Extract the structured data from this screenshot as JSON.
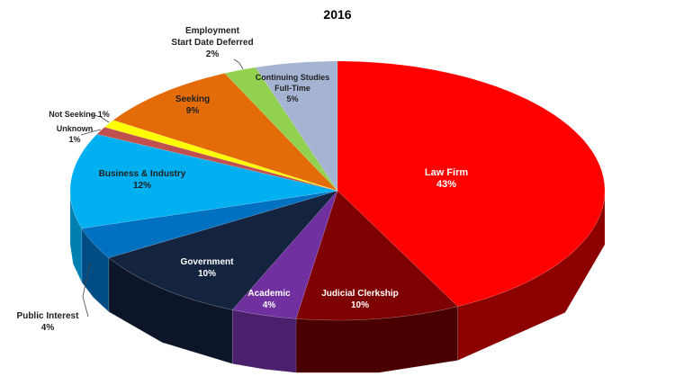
{
  "chart_data": {
    "type": "pie",
    "title": "2016",
    "slices": [
      {
        "name": "Law Firm",
        "value": 43,
        "label": "43%",
        "color": "#ff0000",
        "side": "#8c0000"
      },
      {
        "name": "Judicial Clerkship",
        "value": 10,
        "label": "10%",
        "color": "#7f0000",
        "side": "#4a0000"
      },
      {
        "name": "Academic",
        "value": 4,
        "label": "4%",
        "color": "#7030a0",
        "side": "#4a1f6b"
      },
      {
        "name": "Government",
        "value": 10,
        "label": "10%",
        "color": "#14243f",
        "side": "#0c1628"
      },
      {
        "name": "Public Interest",
        "value": 4,
        "label": "4%",
        "color": "#0070c0",
        "side": "#004c85"
      },
      {
        "name": "Business & Industry",
        "value": 12,
        "label": "12%",
        "color": "#00b0f0",
        "side": "#0080b0"
      },
      {
        "name": "Unknown",
        "value": 1,
        "label": "1%",
        "color": "#c0504d",
        "side": "#8a3a38"
      },
      {
        "name": "Not Seeking",
        "value": 1,
        "label": "1%",
        "color": "#ffff00",
        "side": "#b0b000"
      },
      {
        "name": "Seeking",
        "value": 9,
        "label": "9%",
        "color": "#e36c09",
        "side": "#a04c06"
      },
      {
        "name": "Employment Start Date Deferred",
        "value": 2,
        "label": "2%",
        "color": "#92d050",
        "side": "#66913a"
      },
      {
        "name": "Continuing Studies Full-Time",
        "value": 5,
        "label": "5%",
        "color": "#a6b4d4",
        "side": "#7580a0"
      }
    ],
    "label_text": {
      "law": "Law Firm",
      "judicial": "Judicial Clerkship",
      "academic": "Academic",
      "government": "Government",
      "public_interest": "Public Interest",
      "business": "Business & Industry",
      "unknown": "Unknown",
      "not_seeking": "Not Seeking 1%",
      "seeking": "Seeking",
      "employment_1": "Employment",
      "employment_2": "Start Date Deferred",
      "continuing_1": "Continuing Studies",
      "continuing_2": "Full-Time"
    }
  }
}
